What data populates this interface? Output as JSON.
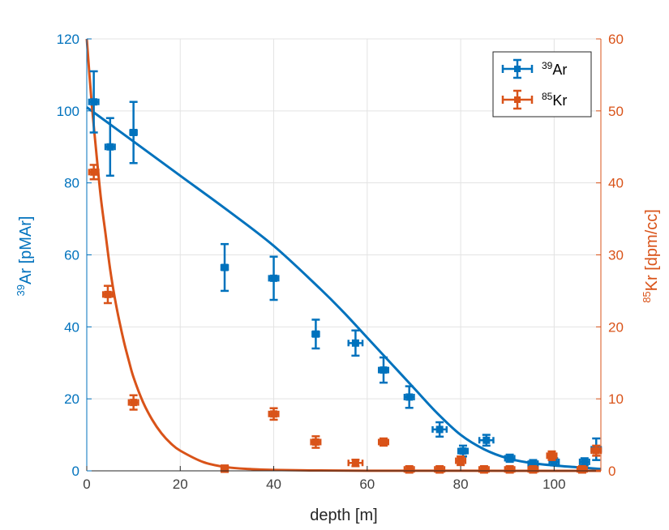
{
  "chart_data": {
    "type": "scatter",
    "xlabel": "depth [m]",
    "xlim": [
      0,
      110
    ],
    "xticks": [
      0,
      20,
      40,
      60,
      80,
      100
    ],
    "ylabel_left": {
      "sup": "39",
      "text": "Ar [pMAr]"
    },
    "ylim_left": [
      0,
      120
    ],
    "yticks_left": [
      0,
      20,
      40,
      60,
      80,
      100,
      120
    ],
    "ylabel_right": {
      "sup": "85",
      "text": "Kr [dpm/cc]"
    },
    "ylim_right": [
      0,
      60
    ],
    "yticks_right": [
      0,
      10,
      20,
      30,
      40,
      50,
      60
    ],
    "grid": true,
    "legend_position": "top-right",
    "colors": {
      "ar": "#0072BD",
      "kr": "#D95319"
    },
    "series": [
      {
        "legend_sup": "39",
        "legend_text": "Ar",
        "axis": "left",
        "color": "#0072BD",
        "points": [
          {
            "x": 1.5,
            "y": 102.5,
            "yerr": 8.5,
            "xerr": 1.0
          },
          {
            "x": 5.0,
            "y": 90.0,
            "yerr": 8.0,
            "xerr": 1.0
          },
          {
            "x": 10.0,
            "y": 94.0,
            "yerr": 8.5,
            "xerr": 0.5
          },
          {
            "x": 29.5,
            "y": 56.5,
            "yerr": 6.5,
            "xerr": 0.5
          },
          {
            "x": 40.0,
            "y": 53.5,
            "yerr": 6.0,
            "xerr": 1.0
          },
          {
            "x": 49.0,
            "y": 38.0,
            "yerr": 4.0,
            "xerr": 0.5
          },
          {
            "x": 57.5,
            "y": 35.5,
            "yerr": 3.5,
            "xerr": 1.5
          },
          {
            "x": 63.5,
            "y": 28.0,
            "yerr": 3.5,
            "xerr": 1.0
          },
          {
            "x": 69.0,
            "y": 20.5,
            "yerr": 3.0,
            "xerr": 1.0
          },
          {
            "x": 75.5,
            "y": 11.5,
            "yerr": 2.0,
            "xerr": 1.5
          },
          {
            "x": 80.5,
            "y": 5.5,
            "yerr": 1.5,
            "xerr": 1.0
          },
          {
            "x": 85.5,
            "y": 8.5,
            "yerr": 1.5,
            "xerr": 1.5
          },
          {
            "x": 90.5,
            "y": 3.5,
            "yerr": 1.0,
            "xerr": 1.0
          },
          {
            "x": 95.5,
            "y": 2.0,
            "yerr": 1.0,
            "xerr": 1.0
          },
          {
            "x": 100.0,
            "y": 2.5,
            "yerr": 1.0,
            "xerr": 1.0
          },
          {
            "x": 106.5,
            "y": 2.5,
            "yerr": 1.0,
            "xerr": 1.0
          },
          {
            "x": 109.0,
            "y": 6.0,
            "yerr": 3.0,
            "xerr": 1.0
          }
        ],
        "fit_curve": {
          "x": [
            0,
            10,
            20,
            30,
            40,
            50,
            55,
            60,
            65,
            70,
            75,
            80,
            85,
            90,
            95,
            100,
            105,
            110
          ],
          "y": [
            101,
            91.5,
            82,
            72.5,
            62.5,
            50.5,
            44,
            37,
            30,
            23,
            16,
            10,
            6,
            3.5,
            2.2,
            1.5,
            1.0,
            0.5
          ]
        }
      },
      {
        "legend_sup": "85",
        "legend_text": "Kr",
        "axis": "right",
        "color": "#D95319",
        "points": [
          {
            "x": 1.5,
            "y": 41.5,
            "yerr": 1.0,
            "xerr": 1.0
          },
          {
            "x": 4.5,
            "y": 24.5,
            "yerr": 1.2,
            "xerr": 1.0
          },
          {
            "x": 10.0,
            "y": 9.5,
            "yerr": 1.0,
            "xerr": 1.0
          },
          {
            "x": 29.5,
            "y": 0.3,
            "yerr": 0.3,
            "xerr": 0.5
          },
          {
            "x": 40.0,
            "y": 7.9,
            "yerr": 0.8,
            "xerr": 1.0
          },
          {
            "x": 49.0,
            "y": 4.0,
            "yerr": 0.8,
            "xerr": 1.0
          },
          {
            "x": 57.5,
            "y": 1.1,
            "yerr": 0.2,
            "xerr": 1.5
          },
          {
            "x": 63.5,
            "y": 4.0,
            "yerr": 0.5,
            "xerr": 1.0
          },
          {
            "x": 69.0,
            "y": 0.2,
            "yerr": 0.1,
            "xerr": 1.0
          },
          {
            "x": 75.5,
            "y": 0.2,
            "yerr": 0.1,
            "xerr": 1.0
          },
          {
            "x": 80.0,
            "y": 1.4,
            "yerr": 0.6,
            "xerr": 1.0
          },
          {
            "x": 85.0,
            "y": 0.2,
            "yerr": 0.1,
            "xerr": 1.0
          },
          {
            "x": 90.5,
            "y": 0.2,
            "yerr": 0.1,
            "xerr": 1.0
          },
          {
            "x": 95.5,
            "y": 0.2,
            "yerr": 0.1,
            "xerr": 1.0
          },
          {
            "x": 99.5,
            "y": 2.1,
            "yerr": 0.6,
            "xerr": 1.0
          },
          {
            "x": 106.0,
            "y": 0.2,
            "yerr": 0.1,
            "xerr": 1.0
          },
          {
            "x": 109.0,
            "y": 2.8,
            "yerr": 0.7,
            "xerr": 1.0
          }
        ],
        "fit_curve": {
          "x": [
            0,
            1,
            2,
            3,
            4,
            5,
            6,
            7,
            8,
            9,
            10,
            12,
            14,
            16,
            18,
            20,
            25,
            30,
            35,
            40,
            50,
            60,
            80,
            110
          ],
          "y": [
            60,
            51.5,
            44.5,
            38,
            33,
            28,
            24,
            20.7,
            17.8,
            15.3,
            13,
            9.6,
            7.1,
            5.2,
            3.8,
            2.8,
            1.2,
            0.5,
            0.25,
            0.12,
            0.05,
            0.02,
            0.01,
            0
          ]
        }
      }
    ]
  }
}
